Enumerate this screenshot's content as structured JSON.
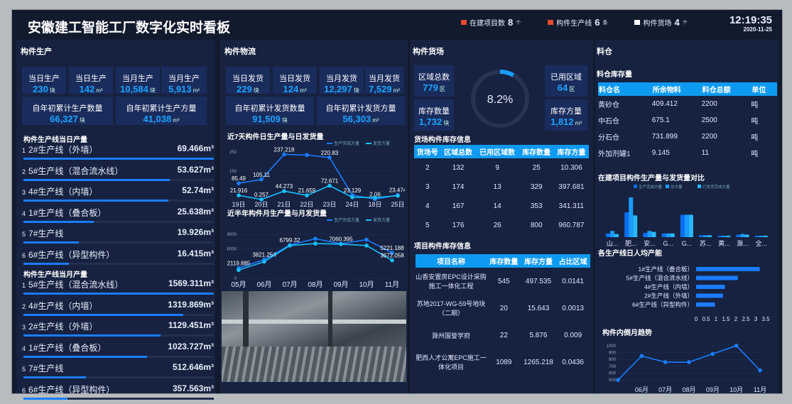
{
  "header": {
    "title": "安徽建工智能工厂数字化实时看板",
    "stats": [
      {
        "label": "在建项目数",
        "value": "8",
        "unit": "个",
        "color": "#e84a2e"
      },
      {
        "label": "构件生产线",
        "value": "6",
        "unit": "条",
        "color": "#e84a2e"
      },
      {
        "label": "构件货场",
        "value": "4",
        "unit": "个",
        "color": "#ffffff"
      }
    ],
    "time": "12:19:35",
    "date": "2020-11-25"
  },
  "production": {
    "title": "构件生产",
    "cards": [
      {
        "label": "当日生产",
        "value": "230",
        "unit": "块"
      },
      {
        "label": "当日生产",
        "value": "142",
        "unit": "m³"
      },
      {
        "label": "当月生产",
        "value": "10,584",
        "unit": "块"
      },
      {
        "label": "当月生产",
        "value": "5,913",
        "unit": "m³"
      },
      {
        "label": "自年初累计生产数量",
        "value": "66,327",
        "unit": "块"
      },
      {
        "label": "自年初累计生产方量",
        "value": "41,038",
        "unit": "m³"
      }
    ],
    "daily_title": "构件生产线当日产量",
    "daily": [
      {
        "rank": "1",
        "name": "2#生产线（外墙）",
        "value": "69.466m³",
        "pct": 100
      },
      {
        "rank": "2",
        "name": "5#生产线（混合流水线）",
        "value": "53.627m³",
        "pct": 77
      },
      {
        "rank": "3",
        "name": "4#生产线（内墙）",
        "value": "52.74m³",
        "pct": 76
      },
      {
        "rank": "4",
        "name": "1#生产线（叠合板）",
        "value": "25.638m³",
        "pct": 37
      },
      {
        "rank": "5",
        "name": "7#生产线",
        "value": "19.926m³",
        "pct": 29
      },
      {
        "rank": "6",
        "name": "6#生产线（异型构件）",
        "value": "16.415m³",
        "pct": 24
      }
    ],
    "monthly_title": "构件生产线当月产量",
    "monthly": [
      {
        "rank": "1",
        "name": "5#生产线（混合流水线）",
        "value": "1569.311m³",
        "pct": 100
      },
      {
        "rank": "2",
        "name": "4#生产线（内墙）",
        "value": "1319.869m³",
        "pct": 84
      },
      {
        "rank": "3",
        "name": "2#生产线（外墙）",
        "value": "1129.451m³",
        "pct": 72
      },
      {
        "rank": "4",
        "name": "1#生产线（叠合板）",
        "value": "1023.727m³",
        "pct": 65
      },
      {
        "rank": "5",
        "name": "7#生产线",
        "value": "512.646m³",
        "pct": 33
      },
      {
        "rank": "6",
        "name": "6#生产线（异型构件）",
        "value": "357.563m³",
        "pct": 23
      }
    ]
  },
  "logistics": {
    "title": "构件物流",
    "cards": [
      {
        "label": "当日发货",
        "value": "229",
        "unit": "块"
      },
      {
        "label": "当日发货",
        "value": "124",
        "unit": "m³"
      },
      {
        "label": "当月发货",
        "value": "12,297",
        "unit": "块"
      },
      {
        "label": "当月发货",
        "value": "7,529",
        "unit": "m³"
      },
      {
        "label": "自年初累计发货数量",
        "value": "91,509",
        "unit": "块"
      },
      {
        "label": "自年初累计发货方量",
        "value": "56,303",
        "unit": "m³"
      }
    ]
  },
  "yard": {
    "title": "构件货场",
    "cards": [
      {
        "label": "区域总数",
        "value": "779",
        "unit": "区"
      },
      {
        "label": "库存数量",
        "value": "1,732",
        "unit": "块"
      },
      {
        "label": "已用区域",
        "value": "64",
        "unit": "区"
      },
      {
        "label": "库存方量",
        "value": "1,812",
        "unit": "m³"
      }
    ],
    "usage_pct": 8.2,
    "usage_label": "8.2%",
    "stock_title": "货场构件库存信息",
    "stock_headers": [
      "货场号",
      "区域总数",
      "已用区域数",
      "库存数量",
      "库存方量"
    ],
    "stock_rows": [
      [
        "2",
        "132",
        "9",
        "25",
        "10.306"
      ],
      [
        "3",
        "174",
        "13",
        "329",
        "397.681"
      ],
      [
        "4",
        "167",
        "14",
        "353",
        "341.311"
      ],
      [
        "5",
        "176",
        "26",
        "800",
        "960.787"
      ]
    ],
    "proj_title": "项目构件库存信息",
    "proj_headers": [
      "项目名称",
      "库存数量",
      "库存方量",
      "占比区域"
    ],
    "proj_rows": [
      [
        "山香安置房EPC设计采购施工一体化工程",
        "545",
        "497.535",
        "0.0141"
      ],
      [
        "苏地2017-WG-59号地块（二期）",
        "20",
        "15.643",
        "0.0013"
      ],
      [
        "滁州国誉学府",
        "22",
        "5.876",
        "0.009"
      ],
      [
        "肥西人才公寓EPC施工一体化项目",
        "1089",
        "1265.218",
        "0.0436"
      ]
    ]
  },
  "silo": {
    "title": "料仓",
    "sub": "料仓库存量",
    "headers": [
      "料仓名",
      "所余物料",
      "料仓总额",
      "单位"
    ],
    "rows": [
      [
        "黄砂仓",
        "409.412",
        "2200",
        "吨"
      ],
      [
        "中石仓",
        "675.1",
        "2500",
        "吨"
      ],
      [
        "分石仓",
        "731.899",
        "2200",
        "吨"
      ],
      [
        "外加剂罐1",
        "9.145",
        "11",
        "吨"
      ]
    ]
  },
  "chart_data": [
    {
      "id": "daily",
      "type": "line",
      "title": "近7天构件日生产量与日发货量",
      "categories": [
        "19日",
        "20日",
        "21日",
        "22日",
        "23日",
        "24日",
        "18日",
        "25日"
      ],
      "ylim": [
        0,
        250
      ],
      "yticks": [
        150,
        250
      ],
      "series": [
        {
          "name": "生产完成方量",
          "values": [
            85.49,
            105.11,
            237.218,
            234,
            220.83,
            23.129,
            2.06,
            23.474
          ],
          "labels": [
            "85.49",
            "105.11",
            "237.218",
            "",
            "220.83",
            "23.129",
            "2.06",
            "23.474"
          ],
          "color": "#1a7cff"
        },
        {
          "name": "发货方量",
          "values": [
            21.916,
            0.257,
            44.273,
            21.659,
            72.671,
            12,
            10,
            20
          ],
          "labels": [
            "21.916",
            "0.257",
            "44.273",
            "21.659",
            "72.671",
            "",
            "",
            ""
          ],
          "color": "#18c0ff"
        }
      ]
    },
    {
      "id": "monthly",
      "type": "line",
      "title": "近半年构件月生产量与月发货量",
      "categories": [
        "05月",
        "06月",
        "07月",
        "08月",
        "09月",
        "10月",
        "11月"
      ],
      "ylim": [
        0,
        9000
      ],
      "yticks": [
        0,
        6000,
        9000
      ],
      "series": [
        {
          "name": "生产完成方量",
          "values": [
            2119.885,
            3821.254,
            6799.32,
            8100,
            7060.395,
            7900,
            5221.188
          ],
          "labels": [
            "2119.885",
            "3821.254",
            "6799.32",
            "",
            "7060.395",
            "",
            "5221.188"
          ],
          "color": "#1a7cff"
        },
        {
          "name": "发货方量",
          "values": [
            1700,
            3400,
            6700,
            7100,
            7000,
            6700,
            3672.058
          ],
          "labels": [
            "",
            "",
            "",
            "",
            "",
            "",
            "3672.058"
          ],
          "color": "#18c0ff"
        }
      ]
    },
    {
      "id": "compare",
      "type": "bar",
      "title": "在建项目构件生产量与发货量对比",
      "categories": [
        "山...",
        "肥...",
        "安...",
        "G...",
        "G...",
        "苏...",
        "黄...",
        "滁...",
        "全..."
      ],
      "series": [
        {
          "name": "生产完成方量",
          "values": [
            300,
            2000,
            350,
            300,
            1800,
            150,
            60,
            200,
            90
          ],
          "color": "#0a6ef0"
        },
        {
          "name": "总方量",
          "values": [
            500,
            3200,
            500,
            300,
            1800,
            150,
            60,
            260,
            90
          ],
          "color": "#1a9cff"
        },
        {
          "name": "已发货完成方量",
          "values": [
            250,
            1750,
            420,
            300,
            1800,
            150,
            60,
            200,
            90
          ],
          "color": "#2ab8ff"
        }
      ]
    },
    {
      "id": "percapita",
      "type": "bar",
      "orientation": "horizontal",
      "title": "各生产线日人均产能",
      "categories": [
        "1#生产线（叠合板）",
        "5#生产线（混合流水线）",
        "4#生产线（内墙）",
        "2#生产线（外墙）",
        "6#生产线（异型构件）"
      ],
      "values": [
        3.2,
        2.1,
        1.45,
        1.35,
        0.95
      ],
      "xlim": [
        0,
        3.5
      ],
      "xticks": [
        "0",
        "0.5",
        "1",
        "1.5",
        "2",
        "2.5",
        "3",
        "3.5"
      ],
      "color": "#1a7cff"
    },
    {
      "id": "trend",
      "type": "line",
      "title": "构件内倒月趋势",
      "categories": [
        "",
        "06月",
        "07月",
        "08月",
        "09月",
        "10月",
        "11月"
      ],
      "ylim": [
        450,
        1050
      ],
      "yticks": [
        500,
        600,
        700,
        800,
        900,
        1000
      ],
      "series": [
        {
          "values": [
            500,
            850,
            760,
            760,
            880,
            1000,
            640
          ],
          "color": "#1a7cff"
        }
      ]
    }
  ]
}
